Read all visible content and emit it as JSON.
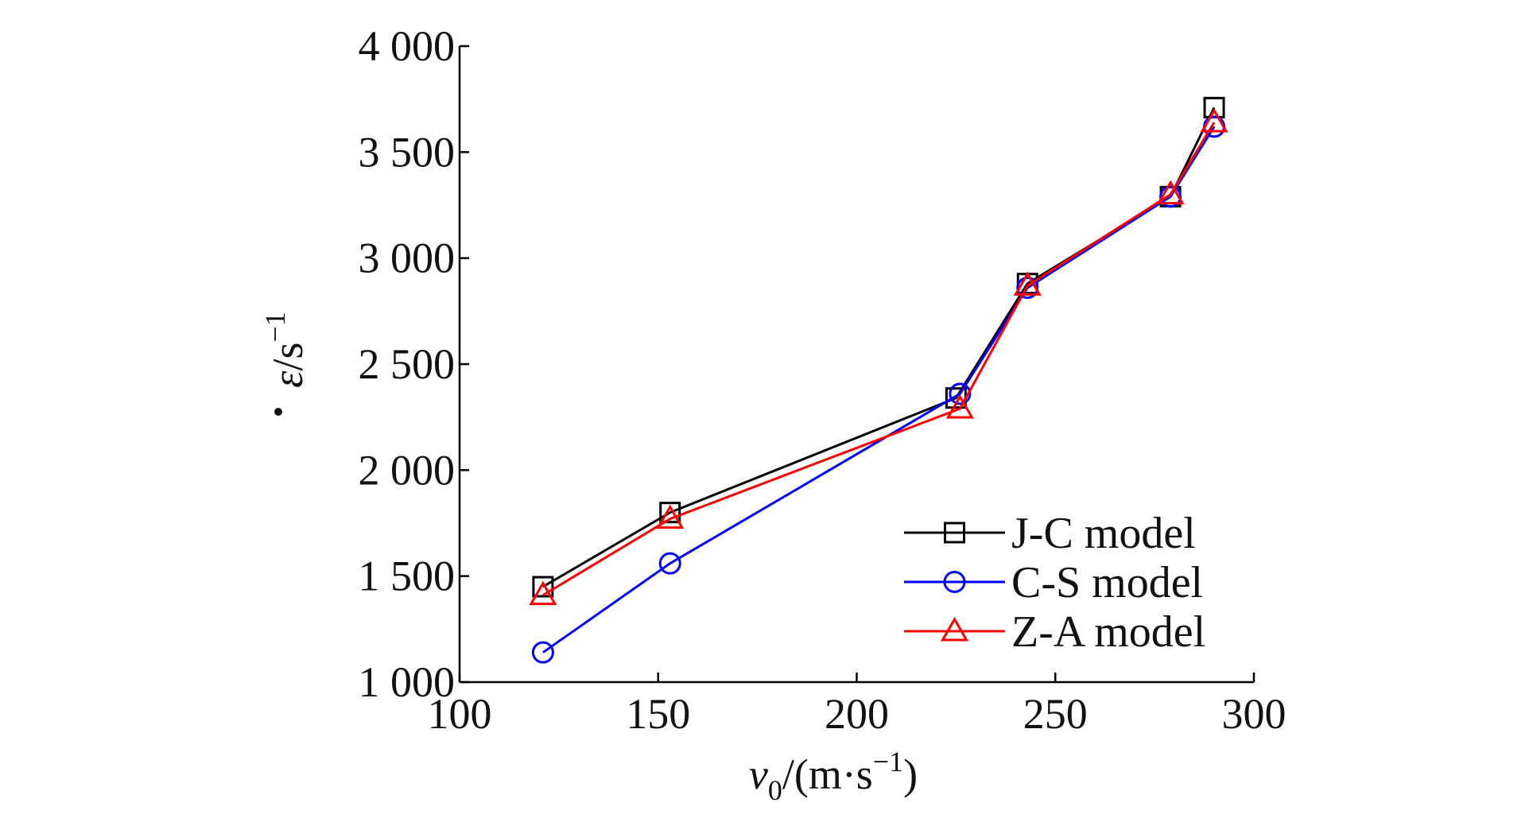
{
  "chart_data": {
    "type": "line",
    "title": "",
    "xlabel": "v0/(m·s−1)",
    "xlabel_parts": {
      "var": "v",
      "sub": "0",
      "unit_open": "/(m·s",
      "sup": "−1",
      "unit_close": ")"
    },
    "ylabel": "ε̇/s−1",
    "ylabel_parts": {
      "var": "ε",
      "unit": "/s",
      "sup": "−1"
    },
    "xlim": [
      100,
      300
    ],
    "ylim": [
      1000,
      4000
    ],
    "xticks": [
      100,
      150,
      200,
      250,
      300
    ],
    "xtick_labels": [
      "100",
      "150",
      "200",
      "250",
      "300"
    ],
    "yticks": [
      1000,
      1500,
      2000,
      2500,
      3000,
      3500,
      4000
    ],
    "ytick_labels": [
      "1 000",
      "1 500",
      "2 000",
      "2 500",
      "3 000",
      "3 500",
      "4 000"
    ],
    "grid": false,
    "legend_position": "bottom-right",
    "series": [
      {
        "name": "J-C model",
        "color": "#000000",
        "marker": "square",
        "x": [
          121,
          153,
          225,
          243,
          279,
          290
        ],
        "y": [
          1450,
          1800,
          2340,
          2880,
          3290,
          3710
        ]
      },
      {
        "name": "C-S model",
        "color": "#0000ff",
        "marker": "circle",
        "x": [
          121,
          153,
          226,
          243,
          279,
          290
        ],
        "y": [
          1140,
          1560,
          2360,
          2860,
          3290,
          3620
        ]
      },
      {
        "name": "Z-A model",
        "color": "#ff0000",
        "marker": "triangle",
        "x": [
          121,
          153,
          226,
          243,
          279,
          290
        ],
        "y": [
          1410,
          1770,
          2290,
          2870,
          3300,
          3640
        ]
      }
    ]
  }
}
